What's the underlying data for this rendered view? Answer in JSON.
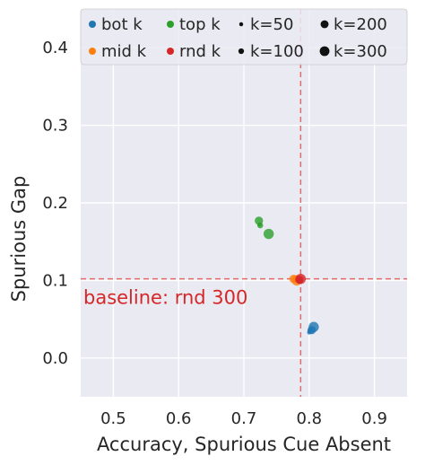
{
  "chart_data": {
    "type": "scatter",
    "xlabel": "Accuracy, Spurious Cue Absent",
    "ylabel": "Spurious Gap",
    "xlim": [
      0.45,
      0.95
    ],
    "ylim": [
      -0.05,
      0.45
    ],
    "x_ticks": [
      "0.5",
      "0.6",
      "0.7",
      "0.8",
      "0.9"
    ],
    "x_tick_values": [
      0.5,
      0.6,
      0.7,
      0.8,
      0.9
    ],
    "y_ticks": [
      "0.0",
      "0.1",
      "0.2",
      "0.3",
      "0.4"
    ],
    "y_tick_values": [
      0.0,
      0.1,
      0.2,
      0.3,
      0.4
    ],
    "grid": true,
    "background": "#eaeaf2",
    "legend_position": "top",
    "baseline": {
      "x": 0.787,
      "y": 0.102,
      "color": "#e06d6a",
      "label": "baseline: rnd 300",
      "label_color": "#d62728"
    },
    "series": [
      {
        "name": "bot k",
        "color": "#1f77b4",
        "points": [
          {
            "x": 0.8,
            "y": 0.033,
            "k": 50
          },
          {
            "x": 0.802,
            "y": 0.035,
            "k": 100
          },
          {
            "x": 0.804,
            "y": 0.036,
            "k": 200
          },
          {
            "x": 0.807,
            "y": 0.04,
            "k": 300
          }
        ]
      },
      {
        "name": "mid k",
        "color": "#ff7f0e",
        "points": [
          {
            "x": 0.78,
            "y": 0.104,
            "k": 50
          },
          {
            "x": 0.778,
            "y": 0.102,
            "k": 100
          },
          {
            "x": 0.776,
            "y": 0.102,
            "k": 200
          },
          {
            "x": 0.781,
            "y": 0.1,
            "k": 300
          }
        ]
      },
      {
        "name": "top k",
        "color": "#2ca02c",
        "points": [
          {
            "x": 0.724,
            "y": 0.172,
            "k": 50
          },
          {
            "x": 0.725,
            "y": 0.171,
            "k": 100
          },
          {
            "x": 0.723,
            "y": 0.177,
            "k": 200
          },
          {
            "x": 0.738,
            "y": 0.16,
            "k": 300
          }
        ]
      },
      {
        "name": "rnd k",
        "color": "#d62728",
        "points": [
          {
            "x": 0.784,
            "y": 0.099,
            "k": 50
          },
          {
            "x": 0.786,
            "y": 0.1,
            "k": 100
          },
          {
            "x": 0.785,
            "y": 0.101,
            "k": 200
          },
          {
            "x": 0.787,
            "y": 0.102,
            "k": 300
          }
        ]
      }
    ],
    "size_legend": [
      {
        "label": "k=50",
        "k": 50
      },
      {
        "label": "k=100",
        "k": 100
      },
      {
        "label": "k=200",
        "k": 200
      },
      {
        "label": "k=300",
        "k": 300
      }
    ],
    "legend_rows": [
      [
        "bot k",
        "top k",
        "k=50",
        "k=200"
      ],
      [
        "mid k",
        "rnd k",
        "k=100",
        "k=300"
      ]
    ]
  }
}
